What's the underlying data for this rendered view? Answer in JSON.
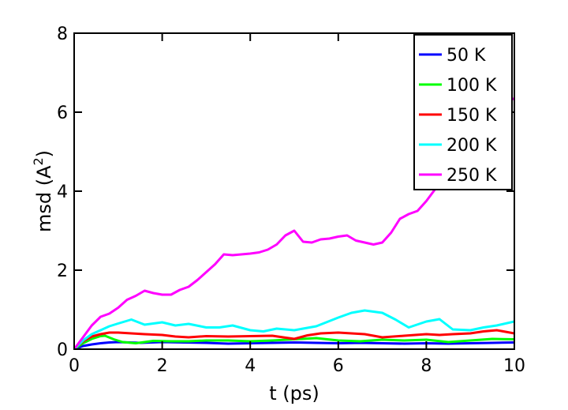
{
  "chart_data": {
    "type": "line",
    "xlabel": "t (ps)",
    "ylabel_main": "msd (A",
    "ylabel_sup": "2",
    "ylabel_close": ")",
    "xlim": [
      0,
      10
    ],
    "ylim": [
      0,
      8
    ],
    "xticks": [
      0,
      2,
      4,
      6,
      8,
      10
    ],
    "xtick_labels": [
      "0",
      "2",
      "4",
      "6",
      "8",
      "10"
    ],
    "yticks": [
      0,
      2,
      4,
      6,
      8
    ],
    "ytick_labels": [
      "0",
      "2",
      "4",
      "6",
      "8"
    ],
    "grid": false,
    "legend_position": "top-right",
    "series": [
      {
        "name": "50 K",
        "color": "#0000ff",
        "x": [
          0,
          0.2,
          0.4,
          0.6,
          0.8,
          1.0,
          1.5,
          2.0,
          2.5,
          3.0,
          3.5,
          4.0,
          4.5,
          5.0,
          5.5,
          6.0,
          6.5,
          7.0,
          7.5,
          8.0,
          8.5,
          9.0,
          9.5,
          10.0
        ],
        "y": [
          0,
          0.08,
          0.12,
          0.15,
          0.17,
          0.18,
          0.16,
          0.18,
          0.17,
          0.16,
          0.14,
          0.15,
          0.16,
          0.17,
          0.16,
          0.15,
          0.16,
          0.15,
          0.14,
          0.15,
          0.14,
          0.15,
          0.16,
          0.17
        ]
      },
      {
        "name": "100 K",
        "color": "#00ff00",
        "x": [
          0,
          0.2,
          0.4,
          0.6,
          0.7,
          0.9,
          1.1,
          1.4,
          1.8,
          2.2,
          2.6,
          3.0,
          3.5,
          4.0,
          4.5,
          5.0,
          5.5,
          6.0,
          6.5,
          7.0,
          7.5,
          8.0,
          8.5,
          9.0,
          9.5,
          10.0
        ],
        "y": [
          0,
          0.15,
          0.26,
          0.33,
          0.34,
          0.25,
          0.18,
          0.15,
          0.21,
          0.2,
          0.2,
          0.22,
          0.22,
          0.2,
          0.22,
          0.25,
          0.28,
          0.22,
          0.2,
          0.24,
          0.22,
          0.24,
          0.18,
          0.22,
          0.26,
          0.25
        ]
      },
      {
        "name": "150 K",
        "color": "#ff0000",
        "x": [
          0,
          0.2,
          0.4,
          0.6,
          0.8,
          1.0,
          1.3,
          1.6,
          2.0,
          2.3,
          2.6,
          3.0,
          3.5,
          4.0,
          4.5,
          5.0,
          5.3,
          5.6,
          6.0,
          6.3,
          6.6,
          7.0,
          7.5,
          8.0,
          8.3,
          8.6,
          9.0,
          9.3,
          9.6,
          10.0
        ],
        "y": [
          0,
          0.2,
          0.32,
          0.38,
          0.42,
          0.42,
          0.4,
          0.38,
          0.36,
          0.32,
          0.3,
          0.33,
          0.32,
          0.33,
          0.34,
          0.26,
          0.35,
          0.4,
          0.42,
          0.4,
          0.38,
          0.3,
          0.34,
          0.38,
          0.36,
          0.38,
          0.4,
          0.45,
          0.48,
          0.4
        ]
      },
      {
        "name": "200 K",
        "color": "#00ffff",
        "x": [
          0,
          0.2,
          0.4,
          0.6,
          0.8,
          1.0,
          1.3,
          1.6,
          2.0,
          2.3,
          2.6,
          3.0,
          3.3,
          3.6,
          4.0,
          4.3,
          4.6,
          5.0,
          5.5,
          6.0,
          6.3,
          6.6,
          7.0,
          7.3,
          7.6,
          8.0,
          8.3,
          8.6,
          9.0,
          9.3,
          9.6,
          10.0
        ],
        "y": [
          0,
          0.22,
          0.38,
          0.48,
          0.58,
          0.65,
          0.75,
          0.62,
          0.68,
          0.6,
          0.64,
          0.55,
          0.55,
          0.6,
          0.48,
          0.45,
          0.52,
          0.48,
          0.58,
          0.8,
          0.92,
          0.98,
          0.92,
          0.75,
          0.55,
          0.7,
          0.76,
          0.5,
          0.48,
          0.55,
          0.6,
          0.7
        ]
      },
      {
        "name": "250 K",
        "color": "#ff00ff",
        "x": [
          0,
          0.2,
          0.4,
          0.6,
          0.8,
          1.0,
          1.2,
          1.4,
          1.6,
          1.8,
          2.0,
          2.2,
          2.4,
          2.6,
          2.8,
          3.0,
          3.2,
          3.4,
          3.6,
          3.8,
          4.0,
          4.2,
          4.4,
          4.6,
          4.8,
          5.0,
          5.2,
          5.4,
          5.6,
          5.8,
          6.0,
          6.2,
          6.4,
          6.6,
          6.8,
          7.0,
          7.2,
          7.4,
          7.6,
          7.8,
          8.0,
          8.2,
          8.4,
          8.6,
          8.8,
          9.0,
          9.2,
          9.4,
          9.6,
          9.8,
          10.0
        ],
        "y": [
          0,
          0.3,
          0.6,
          0.82,
          0.9,
          1.05,
          1.25,
          1.35,
          1.48,
          1.42,
          1.38,
          1.38,
          1.5,
          1.58,
          1.75,
          1.95,
          2.15,
          2.4,
          2.38,
          2.4,
          2.42,
          2.45,
          2.52,
          2.65,
          2.88,
          3.0,
          2.72,
          2.7,
          2.78,
          2.8,
          2.85,
          2.88,
          2.75,
          2.7,
          2.65,
          2.7,
          2.95,
          3.3,
          3.42,
          3.5,
          3.75,
          4.05,
          4.35,
          4.55,
          4.75,
          5.0,
          5.3,
          5.65,
          6.05,
          6.25,
          6.35
        ]
      }
    ]
  }
}
